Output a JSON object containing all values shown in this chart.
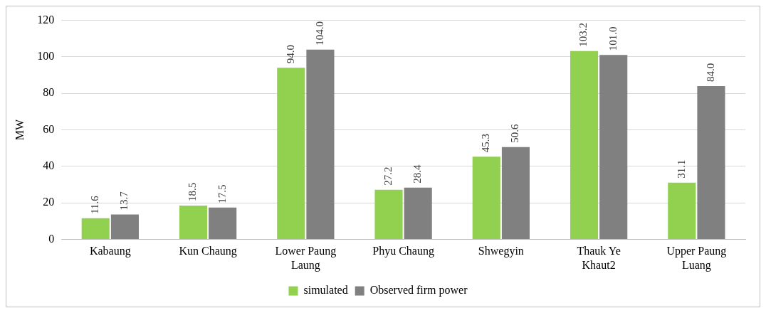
{
  "chart_data": {
    "type": "bar",
    "ylabel": "MW",
    "categories": [
      "Kabaung",
      "Kun Chaung",
      "Lower Paung Laung",
      "Phyu Chaung",
      "Shwegyin",
      "Thauk Ye Khaut2",
      "Upper Paung Luang"
    ],
    "series": [
      {
        "name": "simulated",
        "color": "#92d050",
        "values": [
          11.6,
          18.5,
          94.0,
          27.2,
          45.3,
          103.2,
          31.1
        ],
        "value_labels": [
          "11.6",
          "18.5",
          "94.0",
          "27.2",
          "45.3",
          "103.2",
          "31.1"
        ]
      },
      {
        "name": "Observed firm power",
        "color": "#808080",
        "values": [
          13.7,
          17.5,
          104.0,
          28.4,
          50.6,
          101.0,
          84.0
        ],
        "value_labels": [
          "13.7",
          "17.5",
          "104.0",
          "28.4",
          "50.6",
          "101.0",
          "84.0"
        ]
      }
    ],
    "ylim": [
      0,
      120
    ],
    "yticks": [
      0,
      20,
      40,
      60,
      80,
      100,
      120
    ],
    "grid": "y",
    "legend": "bottom"
  }
}
